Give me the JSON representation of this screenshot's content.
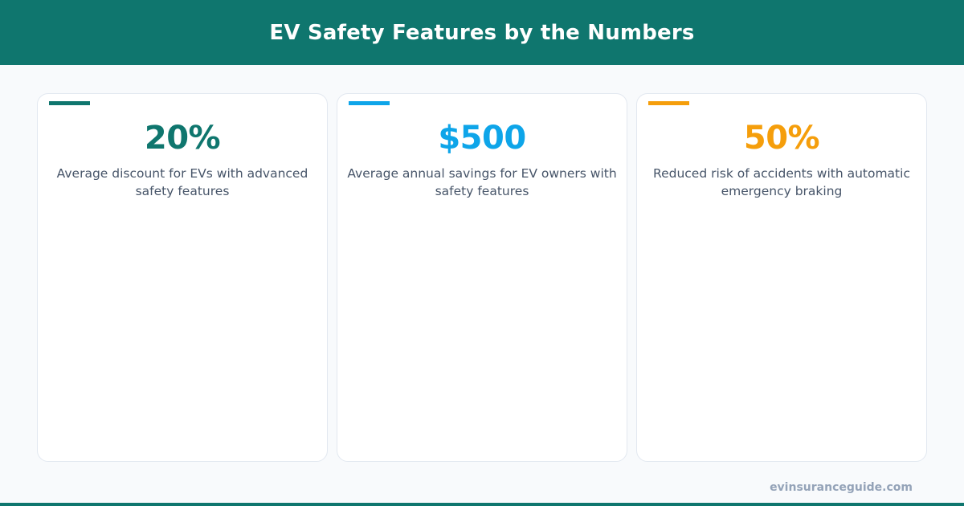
{
  "header": {
    "title": "EV Safety Features by the Numbers",
    "background_color": "#0f766e"
  },
  "cards": [
    {
      "value": "20%",
      "description": "Average discount for EVs with advanced safety features",
      "accent_color": "#0f766e"
    },
    {
      "value": "$500",
      "description": "Average annual savings for EV owners with safety features",
      "accent_color": "#0ea5e9"
    },
    {
      "value": "50%",
      "description": "Reduced risk of accidents with automatic emergency braking",
      "accent_color": "#f59e0b"
    }
  ],
  "footer": {
    "url": "evinsuranceguide.com"
  }
}
